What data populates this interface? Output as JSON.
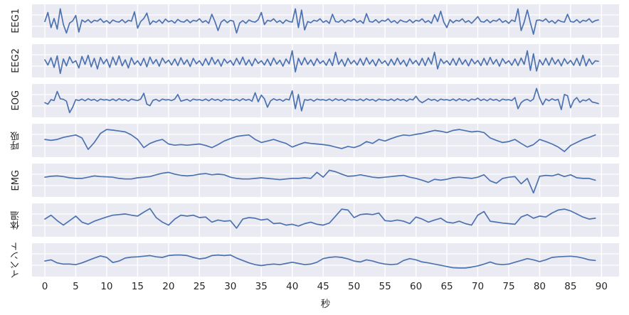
{
  "chart_data": {
    "type": "line",
    "title": "",
    "xlabel": "秒",
    "x_ticks": [
      0,
      5,
      10,
      15,
      20,
      25,
      30,
      35,
      40,
      45,
      50,
      55,
      60,
      65,
      70,
      75,
      80,
      85,
      90
    ],
    "xlim": [
      -2.1,
      92.9
    ],
    "x_range_seconds": [
      0,
      89
    ],
    "grid": true,
    "legend_position": "none",
    "line_color": "#4C72B0",
    "axes_background": "#EAEAF2",
    "grid_color": "#ffffff",
    "tick_color": "#262626",
    "value_scale": "percent of channel height, 0=bottom 100=top",
    "series": [
      {
        "name": "EEG1",
        "dt": 0.5,
        "t_start": 0,
        "values": [
          50,
          80,
          30,
          60,
          25,
          92,
          40,
          12,
          45,
          52,
          70,
          15,
          55,
          48,
          56,
          46,
          54,
          51,
          59,
          47,
          53,
          44,
          55,
          50,
          48,
          56,
          46,
          54,
          51,
          82,
          28,
          50,
          60,
          78,
          40,
          52,
          47,
          55,
          44,
          58,
          49,
          53,
          45,
          57,
          50,
          48,
          56,
          46,
          54,
          51,
          59,
          47,
          53,
          44,
          74,
          50,
          20,
          48,
          56,
          46,
          54,
          51,
          12,
          45,
          53,
          44,
          55,
          50,
          48,
          56,
          80,
          40,
          54,
          51,
          59,
          47,
          53,
          44,
          55,
          50,
          48,
          92,
          30,
          88,
          22,
          50,
          46,
          54,
          51,
          59,
          47,
          53,
          44,
          74,
          50,
          48,
          56,
          46,
          54,
          51,
          59,
          47,
          53,
          44,
          76,
          50,
          48,
          56,
          46,
          54,
          51,
          59,
          47,
          53,
          44,
          55,
          50,
          48,
          56,
          46,
          54,
          51,
          59,
          47,
          53,
          44,
          72,
          50,
          84,
          48,
          30,
          56,
          46,
          54,
          51,
          59,
          47,
          53,
          44,
          55,
          66,
          50,
          48,
          56,
          46,
          54,
          51,
          59,
          47,
          53,
          44,
          55,
          50,
          92,
          20,
          48,
          88,
          46,
          8,
          54,
          55,
          51,
          59,
          47,
          53,
          44,
          55,
          50,
          48,
          74,
          50,
          48,
          56,
          46,
          54,
          51,
          59,
          47,
          53,
          55
        ]
      },
      {
        "name": "EEG2",
        "dt": 0.5,
        "t_start": 0,
        "values": [
          55,
          38,
          62,
          30,
          68,
          10,
          58,
          35,
          65,
          45,
          52,
          28,
          66,
          40,
          70,
          32,
          60,
          25,
          63,
          42,
          57,
          30,
          64,
          38,
          68,
          35,
          55,
          28,
          62,
          40,
          52,
          36,
          60,
          32,
          64,
          42,
          56,
          34,
          61,
          44,
          54,
          38,
          58,
          36,
          62,
          40,
          55,
          33,
          60,
          42,
          52,
          36,
          59,
          38,
          63,
          41,
          56,
          34,
          58,
          44,
          53,
          37,
          60,
          40,
          64,
          38,
          55,
          35,
          59,
          43,
          52,
          38,
          57,
          36,
          61,
          41,
          54,
          34,
          58,
          42,
          85,
          15,
          60,
          38,
          62,
          40,
          55,
          36,
          59,
          43,
          52,
          37,
          58,
          36,
          80,
          40,
          56,
          34,
          60,
          42,
          53,
          38,
          59,
          37,
          62,
          41,
          55,
          35,
          58,
          43,
          52,
          36,
          57,
          38,
          61,
          40,
          54,
          34,
          59,
          42,
          53,
          37,
          60,
          36,
          62,
          41,
          80,
          25,
          58,
          43,
          52,
          38,
          59,
          37,
          61,
          40,
          55,
          35,
          58,
          42,
          53,
          36,
          60,
          38,
          63,
          41,
          56,
          34,
          59,
          43,
          52,
          37,
          58,
          36,
          61,
          40,
          85,
          20,
          75,
          18,
          55,
          38,
          60,
          37,
          62,
          41,
          56,
          35,
          59,
          42,
          53,
          37,
          60,
          36,
          70,
          35,
          58,
          40,
          52,
          50
        ]
      },
      {
        "name": "EOG",
        "dt": 0.5,
        "t_start": 0,
        "values": [
          45,
          40,
          55,
          52,
          82,
          58,
          56,
          50,
          12,
          30,
          55,
          52,
          57,
          51,
          58,
          53,
          56,
          50,
          57,
          54,
          55,
          52,
          57,
          51,
          58,
          53,
          56,
          50,
          57,
          54,
          52,
          57,
          76,
          40,
          35,
          53,
          56,
          50,
          57,
          54,
          55,
          52,
          57,
          72,
          50,
          53,
          56,
          50,
          57,
          54,
          55,
          52,
          57,
          51,
          58,
          53,
          56,
          50,
          57,
          54,
          55,
          52,
          57,
          51,
          58,
          53,
          56,
          50,
          78,
          48,
          70,
          58,
          30,
          51,
          58,
          53,
          56,
          50,
          57,
          54,
          84,
          25,
          72,
          18,
          55,
          53,
          56,
          50,
          57,
          54,
          55,
          52,
          57,
          51,
          58,
          53,
          56,
          50,
          57,
          54,
          55,
          52,
          57,
          51,
          58,
          53,
          56,
          50,
          57,
          54,
          55,
          52,
          57,
          51,
          58,
          53,
          56,
          50,
          57,
          54,
          66,
          52,
          45,
          51,
          58,
          53,
          56,
          50,
          57,
          54,
          55,
          52,
          57,
          51,
          58,
          53,
          56,
          50,
          57,
          54,
          60,
          52,
          57,
          51,
          58,
          53,
          56,
          50,
          57,
          54,
          55,
          52,
          62,
          25,
          45,
          53,
          56,
          50,
          57,
          92,
          60,
          38,
          57,
          51,
          58,
          53,
          56,
          22,
          72,
          68,
          28,
          52,
          62,
          46,
          54,
          51,
          58,
          47,
          45,
          42
        ]
      },
      {
        "name": "呼吸",
        "dt": 1,
        "t_start": 0,
        "values": [
          55,
          52,
          55,
          62,
          66,
          70,
          60,
          22,
          45,
          75,
          88,
          86,
          83,
          80,
          70,
          55,
          28,
          42,
          50,
          55,
          40,
          36,
          38,
          36,
          38,
          40,
          35,
          28,
          38,
          50,
          58,
          65,
          68,
          70,
          55,
          45,
          50,
          55,
          48,
          42,
          30,
          38,
          45,
          42,
          40,
          38,
          35,
          30,
          25,
          32,
          28,
          35,
          48,
          42,
          55,
          50,
          58,
          65,
          70,
          68,
          72,
          75,
          80,
          85,
          82,
          78,
          85,
          88,
          84,
          80,
          82,
          78,
          60,
          52,
          45,
          48,
          55,
          42,
          30,
          38,
          55,
          48,
          40,
          30,
          15,
          35,
          45,
          55,
          62,
          70
        ]
      },
      {
        "name": "EMG",
        "dt": 1,
        "t_start": 0,
        "values": [
          62,
          65,
          66,
          64,
          60,
          58,
          58,
          62,
          66,
          64,
          63,
          62,
          58,
          56,
          56,
          60,
          62,
          64,
          70,
          75,
          78,
          72,
          68,
          66,
          68,
          72,
          74,
          70,
          72,
          70,
          62,
          58,
          56,
          56,
          58,
          60,
          58,
          56,
          54,
          56,
          58,
          58,
          60,
          58,
          78,
          62,
          85,
          80,
          72,
          65,
          66,
          70,
          66,
          62,
          60,
          62,
          64,
          66,
          68,
          62,
          58,
          52,
          45,
          55,
          52,
          55,
          60,
          62,
          60,
          58,
          62,
          70,
          50,
          42,
          58,
          62,
          64,
          40,
          58,
          10,
          65,
          68,
          66,
          72,
          64,
          70,
          60,
          58,
          58,
          52
        ]
      },
      {
        "name": "体温",
        "dt": 1,
        "t_start": 0,
        "values": [
          55,
          68,
          50,
          35,
          50,
          65,
          45,
          38,
          48,
          55,
          62,
          68,
          70,
          72,
          68,
          65,
          78,
          90,
          60,
          45,
          35,
          55,
          68,
          65,
          68,
          60,
          62,
          45,
          52,
          48,
          50,
          25,
          55,
          60,
          58,
          52,
          55,
          40,
          42,
          35,
          38,
          32,
          40,
          45,
          38,
          35,
          42,
          65,
          88,
          85,
          60,
          70,
          72,
          70,
          75,
          50,
          48,
          52,
          48,
          40,
          62,
          55,
          45,
          52,
          58,
          45,
          42,
          48,
          40,
          35,
          68,
          80,
          48,
          45,
          42,
          40,
          38,
          62,
          70,
          58,
          65,
          62,
          75,
          85,
          88,
          82,
          72,
          62,
          55,
          58
        ]
      },
      {
        "name": "イベント",
        "dt": 1,
        "t_start": 0,
        "values": [
          48,
          52,
          42,
          38,
          38,
          36,
          42,
          50,
          58,
          65,
          60,
          43,
          48,
          58,
          61,
          62,
          64,
          66,
          62,
          60,
          66,
          68,
          68,
          66,
          60,
          55,
          58,
          66,
          68,
          66,
          68,
          58,
          50,
          42,
          36,
          33,
          36,
          38,
          36,
          40,
          44,
          40,
          36,
          38,
          44,
          56,
          60,
          62,
          60,
          55,
          48,
          45,
          52,
          48,
          42,
          38,
          36,
          38,
          50,
          56,
          52,
          45,
          42,
          38,
          34,
          30,
          26,
          25,
          25,
          28,
          32,
          38,
          45,
          38,
          36,
          38,
          44,
          50,
          56,
          52,
          46,
          52,
          60,
          62,
          63,
          64,
          62,
          58,
          52,
          50
        ]
      }
    ]
  }
}
